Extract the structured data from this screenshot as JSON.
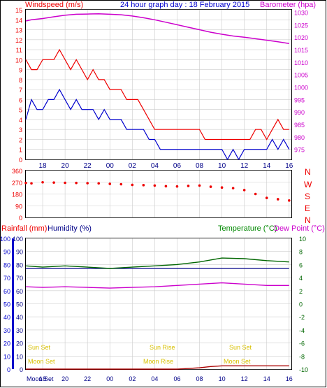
{
  "header": {
    "left_label": "Windspeed (m/s)",
    "title": "24 hour graph day : 18 February 2015",
    "right_label": "Barometer (hpa)"
  },
  "colors": {
    "wind_avg": "#0000cc",
    "wind_gust": "#ee0000",
    "barometer": "#cc00cc",
    "direction": "#ee0000",
    "rain": "#aa0000",
    "humidity": "#000088",
    "temperature": "#006600",
    "dew_point": "#cc00cc",
    "sun_moon": "#d8c000"
  },
  "lower_header": {
    "rain_label": "Rainfall (mm)",
    "humidity_label": "Humidity (%)",
    "temp_label": "Temperature (°C)",
    "dew_label": "Dew Point (°C)"
  },
  "direction_letters": [
    "N",
    "W",
    "S",
    "E",
    "N"
  ],
  "events": {
    "sun_set": "Sun Set",
    "sun_rise": "Sun Rise",
    "moon_set": "Moon Set",
    "moon_rise": "Moon Rise"
  },
  "time_ticks": [
    "18",
    "20",
    "22",
    "00",
    "02",
    "04",
    "06",
    "08",
    "10",
    "12",
    "14",
    "16",
    "18",
    "20",
    "22",
    "00"
  ],
  "bottom_ticks": [
    "Moon Set",
    "18",
    "20",
    "22",
    "00",
    "02",
    "04",
    "06",
    "08",
    "10",
    "12",
    "14",
    "16",
    "Sun Set",
    "20",
    "22",
    "00"
  ],
  "chart_data": [
    {
      "type": "line",
      "title": "24 hour graph day : 18 February 2015",
      "xlabel": "",
      "x_range_hours": [
        16.5,
        40.2
      ],
      "left_axis": {
        "label": "Windspeed (m/s)",
        "ylim": [
          0,
          15
        ],
        "ticks": [
          0,
          1,
          2,
          3,
          4,
          5,
          6,
          7,
          8,
          9,
          10,
          11,
          12,
          13,
          14,
          15
        ]
      },
      "right_axis": {
        "label": "Barometer (hpa)",
        "ylim": [
          971,
          1031
        ],
        "ticks": [
          975,
          980,
          985,
          990,
          995,
          1000,
          1005,
          1010,
          1015,
          1020,
          1025,
          1030
        ]
      },
      "series": [
        {
          "name": "Windspeed",
          "axis": "left",
          "x": [
            16.5,
            17,
            17.5,
            18,
            18.5,
            19,
            19.5,
            20,
            20.5,
            21,
            21.5,
            22,
            22.5,
            23,
            23.5,
            24,
            24.5,
            25,
            25.5,
            26,
            26.5,
            27,
            27.5,
            28,
            28.5,
            29,
            29.5,
            30,
            30.5,
            31,
            31.5,
            32,
            32.5,
            33,
            33.5,
            34,
            34.5,
            35,
            35.5,
            36,
            36.5,
            37,
            37.5,
            38,
            38.5,
            39,
            39.5,
            40
          ],
          "values": [
            4,
            6,
            5,
            5,
            6,
            6,
            7,
            6,
            5,
            6,
            5,
            5,
            5,
            4,
            5,
            4,
            4,
            4,
            3,
            3,
            3,
            3,
            2,
            2,
            1,
            1,
            1,
            1,
            1,
            1,
            1,
            1,
            1,
            1,
            1,
            1,
            0,
            1,
            0,
            1,
            1,
            1,
            1,
            1,
            2,
            1,
            2,
            1
          ]
        },
        {
          "name": "Gust",
          "axis": "left",
          "x": [
            16.5,
            17,
            17.5,
            18,
            18.5,
            19,
            19.5,
            20,
            20.5,
            21,
            21.5,
            22,
            22.5,
            23,
            23.5,
            24,
            24.5,
            25,
            25.5,
            26,
            26.5,
            27,
            27.5,
            28,
            28.5,
            29,
            29.5,
            30,
            30.5,
            31,
            31.5,
            32,
            32.5,
            33,
            33.5,
            34,
            34.5,
            35,
            35.5,
            36,
            36.5,
            37,
            37.5,
            38,
            38.5,
            39,
            39.5,
            40
          ],
          "values": [
            10,
            9,
            9,
            10,
            10,
            10,
            11,
            10,
            9,
            10,
            9,
            8,
            9,
            8,
            8,
            7,
            7,
            7,
            6,
            6,
            6,
            5,
            4,
            3,
            3,
            3,
            3,
            3,
            3,
            3,
            3,
            3,
            2,
            2,
            2,
            2,
            2,
            2,
            2,
            2,
            2,
            3,
            3,
            2,
            3,
            4,
            3,
            3
          ]
        },
        {
          "name": "Barometer",
          "axis": "right",
          "x": [
            16.5,
            17,
            18,
            19,
            20,
            21,
            22,
            23,
            24,
            25,
            26,
            27,
            28,
            29,
            30,
            31,
            32,
            33,
            34,
            35,
            36,
            37,
            38,
            39,
            40
          ],
          "values": [
            1026.5,
            1027,
            1027.5,
            1028.2,
            1028.8,
            1029.2,
            1029.3,
            1029.4,
            1029.2,
            1029,
            1028.5,
            1027.8,
            1027,
            1026,
            1025,
            1024,
            1023,
            1022,
            1021.2,
            1020.5,
            1020,
            1019.4,
            1018.8,
            1018.2,
            1017.5
          ]
        }
      ]
    },
    {
      "type": "scatter",
      "title": "",
      "ylim": [
        0,
        360
      ],
      "y_ticks": [
        0,
        90,
        180,
        270,
        360
      ],
      "series": [
        {
          "name": "Wind Direction",
          "x": [
            16.5,
            17,
            18,
            19,
            20,
            21,
            22,
            23,
            24,
            25,
            26,
            27,
            28,
            29,
            30,
            31,
            32,
            33,
            34,
            35,
            36,
            37,
            38,
            39,
            40
          ],
          "values": [
            265,
            262,
            270,
            268,
            266,
            265,
            263,
            262,
            258,
            255,
            250,
            248,
            245,
            240,
            238,
            242,
            245,
            236,
            230,
            225,
            210,
            180,
            150,
            140,
            130
          ]
        }
      ]
    },
    {
      "type": "line",
      "title": "",
      "left_axis_rain": {
        "label": "Rainfall (mm)",
        "ylim": [
          0,
          100
        ],
        "ticks": [
          0,
          10,
          20,
          30,
          40,
          50,
          60,
          70,
          80,
          90,
          100
        ]
      },
      "left_axis_humidity": {
        "label": "Humidity (%)",
        "ylim": [
          0,
          100
        ],
        "ticks": [
          0,
          10,
          20,
          30,
          40,
          50,
          60,
          70,
          80,
          90,
          100
        ]
      },
      "right_axis": {
        "label": "Temperature (°C)",
        "ylim": [
          -10,
          10
        ],
        "ticks": [
          -10,
          -8,
          -6,
          -4,
          -2,
          0,
          2,
          4,
          6,
          8,
          10
        ]
      },
      "series": [
        {
          "name": "Rainfall",
          "axis": "rain",
          "x": [
            16.5,
            30,
            31,
            32,
            33,
            34,
            35,
            36,
            37,
            38,
            39,
            40
          ],
          "values": [
            0,
            0,
            0.5,
            1,
            2,
            2.5,
            2.5,
            2.5,
            2.5,
            2.5,
            2.5,
            2.5
          ]
        },
        {
          "name": "Humidity",
          "axis": "humidity",
          "x": [
            16.5,
            18,
            20,
            22,
            24,
            26,
            28,
            30,
            32,
            34,
            36,
            38,
            40
          ],
          "values": [
            77,
            77,
            77,
            77,
            77,
            77,
            77,
            77,
            77,
            77,
            77,
            77,
            77
          ]
        },
        {
          "name": "Temperature",
          "axis": "right",
          "x": [
            16.5,
            18,
            20,
            22,
            24,
            26,
            28,
            30,
            32,
            34,
            36,
            38,
            40
          ],
          "values": [
            5.8,
            5.6,
            5.8,
            5.6,
            5.4,
            5.6,
            5.8,
            6,
            6.4,
            7,
            6.9,
            6.6,
            6.4
          ]
        },
        {
          "name": "Dew Point",
          "axis": "right",
          "x": [
            16.5,
            18,
            20,
            22,
            24,
            26,
            28,
            30,
            32,
            34,
            36,
            38,
            40
          ],
          "values": [
            2.6,
            2.5,
            2.6,
            2.5,
            2.4,
            2.5,
            2.6,
            2.8,
            3,
            3.2,
            3,
            2.8,
            2.8
          ]
        }
      ]
    }
  ]
}
